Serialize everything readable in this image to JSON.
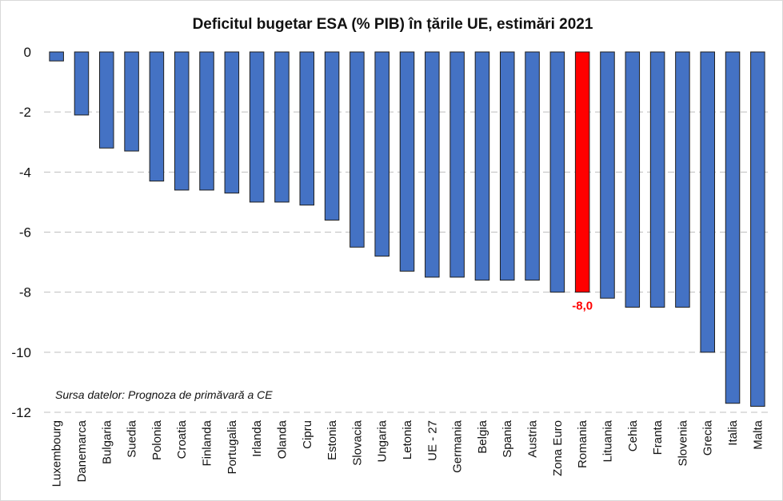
{
  "chart_data": {
    "type": "bar",
    "title": "Deficitul bugetar ESA (% PIB) în țările UE, estimări 2021",
    "categories": [
      "Luxembourg",
      "Danemarca",
      "Bulgaria",
      "Suedia",
      "Polonia",
      "Croatia",
      "Finlanda",
      "Portugalia",
      "Irlanda",
      "Olanda",
      "Cipru",
      "Estonia",
      "Slovacia",
      "Ungaria",
      "Letonia",
      "UE - 27",
      "Germania",
      "Belgia",
      "Spania",
      "Austria",
      "Zona Euro",
      "Romania",
      "Lituania",
      "Cehia",
      "Franta",
      "Slovenia",
      "Grecia",
      "Italia",
      "Malta"
    ],
    "values": [
      -0.3,
      -2.1,
      -3.2,
      -3.3,
      -4.3,
      -4.6,
      -4.6,
      -4.7,
      -5.0,
      -5.0,
      -5.1,
      -5.6,
      -6.5,
      -6.8,
      -7.3,
      -7.5,
      -7.5,
      -7.6,
      -7.6,
      -7.6,
      -8.0,
      -8.0,
      -8.2,
      -8.5,
      -8.5,
      -8.5,
      -10.0,
      -11.7,
      -11.8
    ],
    "ylim": [
      -12,
      0
    ],
    "yticks": [
      "0",
      "-2",
      "-4",
      "-6",
      "-8",
      "-10",
      "-12"
    ],
    "grid": true,
    "colors": {
      "default": "#4472C4",
      "highlight": "#FF0000",
      "bar_edge": "#1F1F1F"
    },
    "highlight_index": 21,
    "data_labels": [
      {
        "category": "Romania",
        "text": "-8,0",
        "color": "#FF0000"
      }
    ],
    "annotation": "Sursa datelor: Prognoza de primăvară a CE"
  }
}
